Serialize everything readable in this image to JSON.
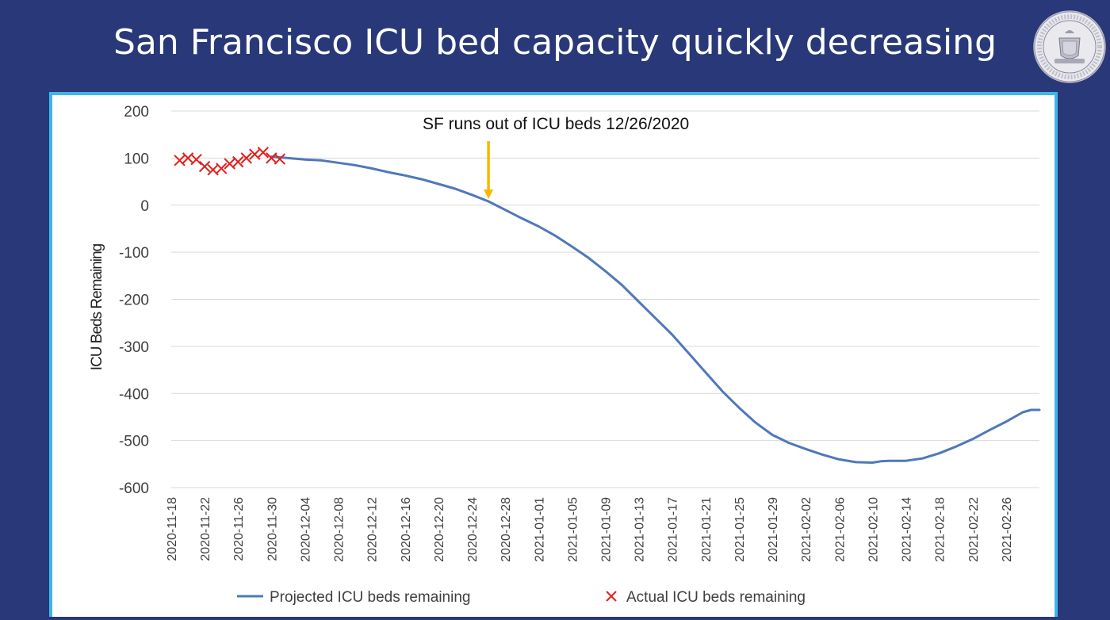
{
  "slide": {
    "title": "San Francisco ICU bed capacity quickly decreasing"
  },
  "logo": {
    "name": "city-county-seal-icon"
  },
  "colors": {
    "background": "#283878",
    "frame": "#3fb6e8",
    "projected_line": "#4f78bb",
    "actual_marker": "#e0201c",
    "annotation_arrow": "#f5b800",
    "grid": "#d9d9d9",
    "text": "#404040"
  },
  "chart_data": {
    "type": "line",
    "title": "",
    "xlabel": "",
    "ylabel": "ICU Beds Remaining",
    "ylim": [
      -600,
      200
    ],
    "yticks": [
      "200",
      "100",
      "0",
      "-100",
      "-200",
      "-300",
      "-400",
      "-500",
      "-600"
    ],
    "xlim": [
      "2020-11-18",
      "2021-03-02"
    ],
    "xticks": [
      "2020-11-18",
      "2020-11-22",
      "2020-11-26",
      "2020-11-30",
      "2020-12-04",
      "2020-12-08",
      "2020-12-12",
      "2020-12-16",
      "2020-12-20",
      "2020-12-24",
      "2020-12-28",
      "2021-01-01",
      "2021-01-05",
      "2021-01-09",
      "2021-01-13",
      "2021-01-17",
      "2021-01-21",
      "2021-01-25",
      "2021-01-29",
      "2021-02-02",
      "2021-02-06",
      "2021-02-10",
      "2021-02-14",
      "2021-02-18",
      "2021-02-22",
      "2021-02-26"
    ],
    "grid": true,
    "legend_position": "bottom",
    "series": [
      {
        "name": "Projected ICU beds remaining",
        "kind": "line",
        "color": "#4f78bb",
        "x": [
          "2020-11-30",
          "2020-12-02",
          "2020-12-04",
          "2020-12-06",
          "2020-12-08",
          "2020-12-10",
          "2020-12-12",
          "2020-12-14",
          "2020-12-16",
          "2020-12-18",
          "2020-12-20",
          "2020-12-22",
          "2020-12-24",
          "2020-12-26",
          "2020-12-28",
          "2020-12-30",
          "2021-01-01",
          "2021-01-03",
          "2021-01-05",
          "2021-01-07",
          "2021-01-09",
          "2021-01-11",
          "2021-01-13",
          "2021-01-15",
          "2021-01-17",
          "2021-01-19",
          "2021-01-21",
          "2021-01-23",
          "2021-01-25",
          "2021-01-27",
          "2021-01-29",
          "2021-01-31",
          "2021-02-02",
          "2021-02-04",
          "2021-02-06",
          "2021-02-08",
          "2021-02-10",
          "2021-02-11",
          "2021-02-12",
          "2021-02-14",
          "2021-02-16",
          "2021-02-18",
          "2021-02-20",
          "2021-02-22",
          "2021-02-24",
          "2021-02-26",
          "2021-02-28",
          "2021-03-01",
          "2021-03-02"
        ],
        "y": [
          103,
          100,
          97,
          95,
          90,
          85,
          78,
          70,
          63,
          55,
          45,
          35,
          22,
          8,
          -10,
          -28,
          -45,
          -65,
          -88,
          -112,
          -140,
          -170,
          -205,
          -240,
          -275,
          -315,
          -355,
          -395,
          -430,
          -462,
          -488,
          -505,
          -518,
          -530,
          -540,
          -546,
          -547,
          -544,
          -543,
          -543,
          -538,
          -527,
          -513,
          -497,
          -478,
          -460,
          -440,
          -435,
          -435
        ]
      },
      {
        "name": "Actual ICU beds remaining",
        "kind": "marker",
        "color": "#e0201c",
        "x": [
          "2020-11-19",
          "2020-11-20",
          "2020-11-21",
          "2020-11-22",
          "2020-11-23",
          "2020-11-24",
          "2020-11-25",
          "2020-11-26",
          "2020-11-27",
          "2020-11-28",
          "2020-11-29",
          "2020-11-30",
          "2020-12-01"
        ],
        "y": [
          95,
          100,
          97,
          82,
          75,
          78,
          88,
          92,
          100,
          108,
          112,
          100,
          98
        ]
      }
    ],
    "annotations": [
      {
        "text": "SF runs out of ICU beds 12/26/2020",
        "x": "2020-12-26",
        "y": 8
      }
    ]
  }
}
